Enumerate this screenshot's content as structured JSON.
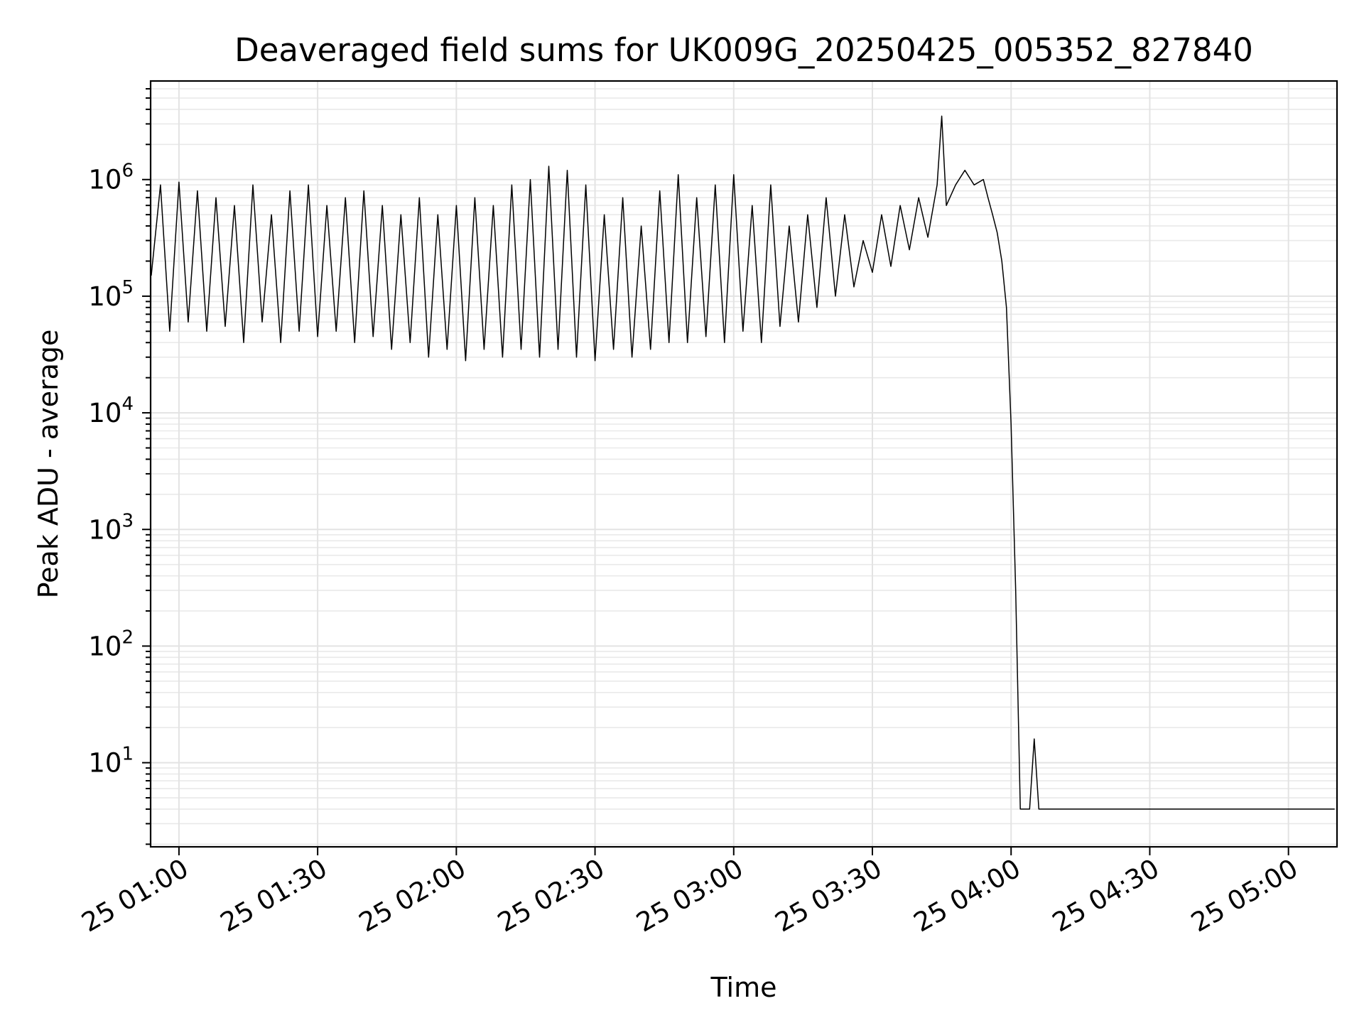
{
  "chart_data": {
    "type": "line",
    "title": "Deaveraged field sums for UK009G_20250425_005352_827840",
    "xlabel": "Time",
    "ylabel": "Peak ADU - average",
    "yscale": "log",
    "grid": true,
    "grid_minor": true,
    "xlim": [
      "2025-04-25 00:53:52",
      "2025-04-25 05:10:30"
    ],
    "ylim": [
      1.9,
      7000000
    ],
    "xticks": [
      {
        "value": "2025-04-25 01:00",
        "label": "25 01:00"
      },
      {
        "value": "2025-04-25 01:30",
        "label": "25 01:30"
      },
      {
        "value": "2025-04-25 02:00",
        "label": "25 02:00"
      },
      {
        "value": "2025-04-25 02:30",
        "label": "25 02:30"
      },
      {
        "value": "2025-04-25 03:00",
        "label": "25 03:00"
      },
      {
        "value": "2025-04-25 03:30",
        "label": "25 03:30"
      },
      {
        "value": "2025-04-25 04:00",
        "label": "25 04:00"
      },
      {
        "value": "2025-04-25 04:30",
        "label": "25 04:30"
      },
      {
        "value": "2025-04-25 05:00",
        "label": "25 05:00"
      }
    ],
    "yticks": [
      {
        "value": 10,
        "base": "10",
        "exp": "1"
      },
      {
        "value": 100,
        "base": "10",
        "exp": "2"
      },
      {
        "value": 1000,
        "base": "10",
        "exp": "3"
      },
      {
        "value": 10000,
        "base": "10",
        "exp": "4"
      },
      {
        "value": 100000,
        "base": "10",
        "exp": "5"
      },
      {
        "value": 1000000,
        "base": "10",
        "exp": "6"
      }
    ],
    "line_color": "#000000",
    "series": [
      {
        "x": [
          "2025-04-25 00:54",
          "2025-04-25 00:56",
          "2025-04-25 00:58",
          "2025-04-25 01:00",
          "2025-04-25 01:02",
          "2025-04-25 01:04",
          "2025-04-25 01:06",
          "2025-04-25 01:08",
          "2025-04-25 01:10",
          "2025-04-25 01:12",
          "2025-04-25 01:14",
          "2025-04-25 01:16",
          "2025-04-25 01:18",
          "2025-04-25 01:20",
          "2025-04-25 01:22",
          "2025-04-25 01:24",
          "2025-04-25 01:26",
          "2025-04-25 01:28",
          "2025-04-25 01:30",
          "2025-04-25 01:32",
          "2025-04-25 01:34",
          "2025-04-25 01:36",
          "2025-04-25 01:38",
          "2025-04-25 01:40",
          "2025-04-25 01:42",
          "2025-04-25 01:44",
          "2025-04-25 01:46",
          "2025-04-25 01:48",
          "2025-04-25 01:50",
          "2025-04-25 01:52",
          "2025-04-25 01:54",
          "2025-04-25 01:56",
          "2025-04-25 01:58",
          "2025-04-25 02:00",
          "2025-04-25 02:02",
          "2025-04-25 02:04",
          "2025-04-25 02:06",
          "2025-04-25 02:08",
          "2025-04-25 02:10",
          "2025-04-25 02:12",
          "2025-04-25 02:14",
          "2025-04-25 02:16",
          "2025-04-25 02:18",
          "2025-04-25 02:20",
          "2025-04-25 02:22",
          "2025-04-25 02:24",
          "2025-04-25 02:26",
          "2025-04-25 02:28",
          "2025-04-25 02:30",
          "2025-04-25 02:32",
          "2025-04-25 02:34",
          "2025-04-25 02:36",
          "2025-04-25 02:38",
          "2025-04-25 02:40",
          "2025-04-25 02:42",
          "2025-04-25 02:44",
          "2025-04-25 02:46",
          "2025-04-25 02:48",
          "2025-04-25 02:50",
          "2025-04-25 02:52",
          "2025-04-25 02:54",
          "2025-04-25 02:56",
          "2025-04-25 02:58",
          "2025-04-25 03:00",
          "2025-04-25 03:02",
          "2025-04-25 03:04",
          "2025-04-25 03:06",
          "2025-04-25 03:08",
          "2025-04-25 03:10",
          "2025-04-25 03:12",
          "2025-04-25 03:14",
          "2025-04-25 03:16",
          "2025-04-25 03:18",
          "2025-04-25 03:20",
          "2025-04-25 03:22",
          "2025-04-25 03:24",
          "2025-04-25 03:26",
          "2025-04-25 03:28",
          "2025-04-25 03:30",
          "2025-04-25 03:32",
          "2025-04-25 03:34",
          "2025-04-25 03:36",
          "2025-04-25 03:38",
          "2025-04-25 03:40",
          "2025-04-25 03:42",
          "2025-04-25 03:44",
          "2025-04-25 03:45",
          "2025-04-25 03:46",
          "2025-04-25 03:48",
          "2025-04-25 03:50",
          "2025-04-25 03:52",
          "2025-04-25 03:54",
          "2025-04-25 03:55",
          "2025-04-25 03:56",
          "2025-04-25 03:57",
          "2025-04-25 03:58",
          "2025-04-25 03:59",
          "2025-04-25 04:00",
          "2025-04-25 04:01",
          "2025-04-25 04:02",
          "2025-04-25 04:03",
          "2025-04-25 04:04",
          "2025-04-25 04:05",
          "2025-04-25 04:06",
          "2025-04-25 04:10",
          "2025-04-25 04:20",
          "2025-04-25 04:30",
          "2025-04-25 04:40",
          "2025-04-25 04:50",
          "2025-04-25 05:00",
          "2025-04-25 05:10"
        ],
        "y": [
          150000,
          900000,
          50000,
          950000,
          60000,
          800000,
          50000,
          700000,
          55000,
          600000,
          40000,
          900000,
          60000,
          500000,
          40000,
          800000,
          50000,
          900000,
          45000,
          600000,
          50000,
          700000,
          40000,
          800000,
          45000,
          600000,
          35000,
          500000,
          40000,
          700000,
          30000,
          500000,
          35000,
          600000,
          28000,
          700000,
          35000,
          600000,
          30000,
          900000,
          35000,
          1000000,
          30000,
          1300000,
          35000,
          1200000,
          30000,
          900000,
          28000,
          500000,
          35000,
          700000,
          30000,
          400000,
          35000,
          800000,
          40000,
          1100000,
          40000,
          700000,
          45000,
          900000,
          40000,
          1100000,
          50000,
          600000,
          40000,
          900000,
          55000,
          400000,
          60000,
          500000,
          80000,
          700000,
          100000,
          500000,
          120000,
          300000,
          160000,
          500000,
          180000,
          600000,
          250000,
          700000,
          320000,
          900000,
          3500000,
          600000,
          900000,
          1200000,
          900000,
          1000000,
          700000,
          500000,
          350000,
          200000,
          80000,
          8000,
          300,
          4,
          4,
          4,
          16,
          4,
          4,
          4,
          4,
          4,
          4,
          4,
          4
        ]
      }
    ]
  }
}
